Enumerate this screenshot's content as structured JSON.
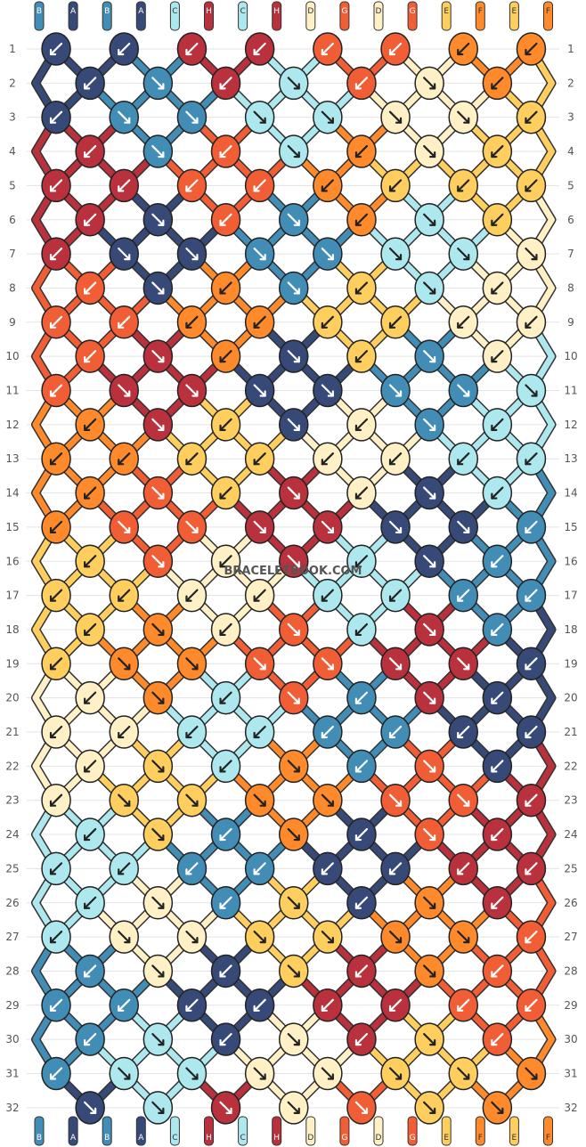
{
  "watermark": "BRACELETBOOK.COM",
  "colors": {
    "A": "#364977",
    "B": "#428db6",
    "C": "#ade8ef",
    "D": "#fff0c6",
    "E": "#fece5e",
    "F": "#fe8a2b",
    "G": "#f15e36",
    "H": "#b8313c"
  },
  "strands_top": [
    "B",
    "A",
    "B",
    "A",
    "C",
    "H",
    "C",
    "H",
    "D",
    "G",
    "D",
    "G",
    "E",
    "F",
    "E",
    "F"
  ],
  "strands_bottom": [
    "B",
    "A",
    "B",
    "A",
    "C",
    "H",
    "C",
    "H",
    "D",
    "G",
    "D",
    "G",
    "E",
    "F",
    "E",
    "F"
  ],
  "row_numbers": [
    "1",
    "2",
    "3",
    "4",
    "5",
    "6",
    "7",
    "8",
    "9",
    "10",
    "11",
    "12",
    "13",
    "14",
    "15",
    "16",
    "17",
    "18",
    "19",
    "20",
    "21",
    "22",
    "23",
    "24",
    "25",
    "26",
    "27",
    "28",
    "29",
    "30",
    "31",
    "32"
  ],
  "knots": [
    {
      "row": 1,
      "knots": [
        {
          "c": "A",
          "d": "L"
        },
        {
          "c": "A",
          "d": "L"
        },
        {
          "c": "H",
          "d": "L"
        },
        {
          "c": "H",
          "d": "L"
        },
        {
          "c": "G",
          "d": "L"
        },
        {
          "c": "G",
          "d": "L"
        },
        {
          "c": "F",
          "d": "L"
        },
        {
          "c": "F",
          "d": "L"
        }
      ]
    },
    {
      "row": 2,
      "knots": [
        {
          "c": "A",
          "d": "L"
        },
        {
          "c": "B",
          "d": "R"
        },
        {
          "c": "H",
          "d": "L"
        },
        {
          "c": "C",
          "d": "R"
        },
        {
          "c": "G",
          "d": "L"
        },
        {
          "c": "D",
          "d": "R"
        },
        {
          "c": "F",
          "d": "L"
        }
      ]
    },
    {
      "row": 3,
      "knots": [
        {
          "c": "A",
          "d": "L"
        },
        {
          "c": "B",
          "d": "R"
        },
        {
          "c": "B",
          "d": "R"
        },
        {
          "c": "C",
          "d": "R"
        },
        {
          "c": "C",
          "d": "R"
        },
        {
          "c": "D",
          "d": "R"
        },
        {
          "c": "D",
          "d": "R"
        },
        {
          "c": "E",
          "d": "L"
        }
      ]
    },
    {
      "row": 4,
      "knots": [
        {
          "c": "H",
          "d": "L"
        },
        {
          "c": "B",
          "d": "R"
        },
        {
          "c": "G",
          "d": "L"
        },
        {
          "c": "C",
          "d": "R"
        },
        {
          "c": "F",
          "d": "L"
        },
        {
          "c": "D",
          "d": "R"
        },
        {
          "c": "E",
          "d": "L"
        }
      ]
    },
    {
      "row": 5,
      "knots": [
        {
          "c": "H",
          "d": "L"
        },
        {
          "c": "H",
          "d": "L"
        },
        {
          "c": "G",
          "d": "L"
        },
        {
          "c": "G",
          "d": "L"
        },
        {
          "c": "F",
          "d": "L"
        },
        {
          "c": "E",
          "d": "L"
        },
        {
          "c": "E",
          "d": "L"
        },
        {
          "c": "E",
          "d": "L"
        }
      ]
    },
    {
      "row": 6,
      "knots": [
        {
          "c": "H",
          "d": "L"
        },
        {
          "c": "A",
          "d": "R"
        },
        {
          "c": "G",
          "d": "L"
        },
        {
          "c": "B",
          "d": "R"
        },
        {
          "c": "F",
          "d": "L"
        },
        {
          "c": "C",
          "d": "R"
        },
        {
          "c": "E",
          "d": "L"
        }
      ]
    },
    {
      "row": 7,
      "knots": [
        {
          "c": "H",
          "d": "L"
        },
        {
          "c": "A",
          "d": "R"
        },
        {
          "c": "A",
          "d": "R"
        },
        {
          "c": "B",
          "d": "R"
        },
        {
          "c": "B",
          "d": "R"
        },
        {
          "c": "C",
          "d": "R"
        },
        {
          "c": "C",
          "d": "R"
        },
        {
          "c": "D",
          "d": "R"
        }
      ]
    },
    {
      "row": 8,
      "knots": [
        {
          "c": "G",
          "d": "L"
        },
        {
          "c": "A",
          "d": "R"
        },
        {
          "c": "F",
          "d": "L"
        },
        {
          "c": "B",
          "d": "R"
        },
        {
          "c": "E",
          "d": "L"
        },
        {
          "c": "C",
          "d": "R"
        },
        {
          "c": "D",
          "d": "L"
        }
      ]
    },
    {
      "row": 9,
      "knots": [
        {
          "c": "G",
          "d": "L"
        },
        {
          "c": "G",
          "d": "L"
        },
        {
          "c": "F",
          "d": "L"
        },
        {
          "c": "F",
          "d": "L"
        },
        {
          "c": "E",
          "d": "L"
        },
        {
          "c": "E",
          "d": "L"
        },
        {
          "c": "D",
          "d": "L"
        },
        {
          "c": "D",
          "d": "L"
        }
      ]
    },
    {
      "row": 10,
      "knots": [
        {
          "c": "G",
          "d": "L"
        },
        {
          "c": "H",
          "d": "R"
        },
        {
          "c": "F",
          "d": "L"
        },
        {
          "c": "A",
          "d": "R"
        },
        {
          "c": "E",
          "d": "L"
        },
        {
          "c": "B",
          "d": "R"
        },
        {
          "c": "D",
          "d": "L"
        }
      ]
    },
    {
      "row": 11,
      "knots": [
        {
          "c": "G",
          "d": "L"
        },
        {
          "c": "H",
          "d": "R"
        },
        {
          "c": "H",
          "d": "R"
        },
        {
          "c": "A",
          "d": "R"
        },
        {
          "c": "A",
          "d": "R"
        },
        {
          "c": "B",
          "d": "R"
        },
        {
          "c": "B",
          "d": "R"
        },
        {
          "c": "C",
          "d": "R"
        }
      ]
    },
    {
      "row": 12,
      "knots": [
        {
          "c": "F",
          "d": "L"
        },
        {
          "c": "H",
          "d": "R"
        },
        {
          "c": "E",
          "d": "L"
        },
        {
          "c": "A",
          "d": "R"
        },
        {
          "c": "D",
          "d": "L"
        },
        {
          "c": "B",
          "d": "R"
        },
        {
          "c": "C",
          "d": "L"
        }
      ]
    },
    {
      "row": 13,
      "knots": [
        {
          "c": "F",
          "d": "L"
        },
        {
          "c": "F",
          "d": "L"
        },
        {
          "c": "E",
          "d": "L"
        },
        {
          "c": "E",
          "d": "L"
        },
        {
          "c": "D",
          "d": "L"
        },
        {
          "c": "D",
          "d": "L"
        },
        {
          "c": "C",
          "d": "L"
        },
        {
          "c": "C",
          "d": "L"
        }
      ]
    },
    {
      "row": 14,
      "knots": [
        {
          "c": "F",
          "d": "L"
        },
        {
          "c": "G",
          "d": "R"
        },
        {
          "c": "E",
          "d": "L"
        },
        {
          "c": "H",
          "d": "R"
        },
        {
          "c": "D",
          "d": "L"
        },
        {
          "c": "A",
          "d": "R"
        },
        {
          "c": "C",
          "d": "L"
        }
      ]
    },
    {
      "row": 15,
      "knots": [
        {
          "c": "F",
          "d": "L"
        },
        {
          "c": "G",
          "d": "R"
        },
        {
          "c": "G",
          "d": "R"
        },
        {
          "c": "H",
          "d": "R"
        },
        {
          "c": "H",
          "d": "R"
        },
        {
          "c": "A",
          "d": "R"
        },
        {
          "c": "A",
          "d": "R"
        },
        {
          "c": "B",
          "d": "L"
        }
      ]
    },
    {
      "row": 16,
      "knots": [
        {
          "c": "E",
          "d": "L"
        },
        {
          "c": "G",
          "d": "R"
        },
        {
          "c": "D",
          "d": "L"
        },
        {
          "c": "H",
          "d": "R"
        },
        {
          "c": "C",
          "d": "L"
        },
        {
          "c": "A",
          "d": "R"
        },
        {
          "c": "B",
          "d": "L"
        }
      ]
    },
    {
      "row": 17,
      "knots": [
        {
          "c": "E",
          "d": "L"
        },
        {
          "c": "E",
          "d": "L"
        },
        {
          "c": "D",
          "d": "L"
        },
        {
          "c": "D",
          "d": "L"
        },
        {
          "c": "C",
          "d": "L"
        },
        {
          "c": "C",
          "d": "L"
        },
        {
          "c": "B",
          "d": "L"
        },
        {
          "c": "B",
          "d": "L"
        }
      ]
    },
    {
      "row": 18,
      "knots": [
        {
          "c": "E",
          "d": "L"
        },
        {
          "c": "F",
          "d": "R"
        },
        {
          "c": "D",
          "d": "L"
        },
        {
          "c": "G",
          "d": "R"
        },
        {
          "c": "C",
          "d": "L"
        },
        {
          "c": "H",
          "d": "R"
        },
        {
          "c": "B",
          "d": "L"
        }
      ]
    },
    {
      "row": 19,
      "knots": [
        {
          "c": "E",
          "d": "L"
        },
        {
          "c": "F",
          "d": "R"
        },
        {
          "c": "F",
          "d": "R"
        },
        {
          "c": "G",
          "d": "R"
        },
        {
          "c": "G",
          "d": "R"
        },
        {
          "c": "H",
          "d": "R"
        },
        {
          "c": "H",
          "d": "R"
        },
        {
          "c": "A",
          "d": "L"
        }
      ]
    },
    {
      "row": 20,
      "knots": [
        {
          "c": "D",
          "d": "L"
        },
        {
          "c": "F",
          "d": "R"
        },
        {
          "c": "C",
          "d": "L"
        },
        {
          "c": "G",
          "d": "R"
        },
        {
          "c": "B",
          "d": "L"
        },
        {
          "c": "H",
          "d": "R"
        },
        {
          "c": "A",
          "d": "L"
        }
      ]
    },
    {
      "row": 21,
      "knots": [
        {
          "c": "D",
          "d": "L"
        },
        {
          "c": "D",
          "d": "L"
        },
        {
          "c": "C",
          "d": "L"
        },
        {
          "c": "C",
          "d": "L"
        },
        {
          "c": "B",
          "d": "L"
        },
        {
          "c": "B",
          "d": "L"
        },
        {
          "c": "A",
          "d": "L"
        },
        {
          "c": "A",
          "d": "L"
        }
      ]
    },
    {
      "row": 22,
      "knots": [
        {
          "c": "D",
          "d": "L"
        },
        {
          "c": "E",
          "d": "R"
        },
        {
          "c": "C",
          "d": "L"
        },
        {
          "c": "F",
          "d": "R"
        },
        {
          "c": "B",
          "d": "L"
        },
        {
          "c": "G",
          "d": "R"
        },
        {
          "c": "A",
          "d": "L"
        }
      ]
    },
    {
      "row": 23,
      "knots": [
        {
          "c": "D",
          "d": "L"
        },
        {
          "c": "E",
          "d": "R"
        },
        {
          "c": "E",
          "d": "R"
        },
        {
          "c": "F",
          "d": "R"
        },
        {
          "c": "F",
          "d": "R"
        },
        {
          "c": "G",
          "d": "R"
        },
        {
          "c": "G",
          "d": "R"
        },
        {
          "c": "H",
          "d": "L"
        }
      ]
    },
    {
      "row": 24,
      "knots": [
        {
          "c": "C",
          "d": "L"
        },
        {
          "c": "E",
          "d": "R"
        },
        {
          "c": "B",
          "d": "L"
        },
        {
          "c": "F",
          "d": "R"
        },
        {
          "c": "A",
          "d": "L"
        },
        {
          "c": "G",
          "d": "R"
        },
        {
          "c": "H",
          "d": "L"
        }
      ]
    },
    {
      "row": 25,
      "knots": [
        {
          "c": "C",
          "d": "L"
        },
        {
          "c": "C",
          "d": "L"
        },
        {
          "c": "B",
          "d": "L"
        },
        {
          "c": "B",
          "d": "L"
        },
        {
          "c": "A",
          "d": "L"
        },
        {
          "c": "A",
          "d": "L"
        },
        {
          "c": "H",
          "d": "L"
        },
        {
          "c": "H",
          "d": "L"
        }
      ]
    },
    {
      "row": 26,
      "knots": [
        {
          "c": "C",
          "d": "L"
        },
        {
          "c": "D",
          "d": "R"
        },
        {
          "c": "B",
          "d": "L"
        },
        {
          "c": "E",
          "d": "R"
        },
        {
          "c": "A",
          "d": "L"
        },
        {
          "c": "F",
          "d": "R"
        },
        {
          "c": "H",
          "d": "L"
        }
      ]
    },
    {
      "row": 27,
      "knots": [
        {
          "c": "C",
          "d": "L"
        },
        {
          "c": "D",
          "d": "R"
        },
        {
          "c": "D",
          "d": "R"
        },
        {
          "c": "E",
          "d": "R"
        },
        {
          "c": "E",
          "d": "R"
        },
        {
          "c": "F",
          "d": "R"
        },
        {
          "c": "F",
          "d": "R"
        },
        {
          "c": "G",
          "d": "L"
        }
      ]
    },
    {
      "row": 28,
      "knots": [
        {
          "c": "B",
          "d": "L"
        },
        {
          "c": "D",
          "d": "R"
        },
        {
          "c": "A",
          "d": "L"
        },
        {
          "c": "E",
          "d": "R"
        },
        {
          "c": "H",
          "d": "L"
        },
        {
          "c": "F",
          "d": "R"
        },
        {
          "c": "G",
          "d": "L"
        }
      ]
    },
    {
      "row": 29,
      "knots": [
        {
          "c": "B",
          "d": "L"
        },
        {
          "c": "B",
          "d": "L"
        },
        {
          "c": "A",
          "d": "L"
        },
        {
          "c": "A",
          "d": "L"
        },
        {
          "c": "H",
          "d": "L"
        },
        {
          "c": "H",
          "d": "L"
        },
        {
          "c": "G",
          "d": "L"
        },
        {
          "c": "G",
          "d": "L"
        }
      ]
    },
    {
      "row": 30,
      "knots": [
        {
          "c": "B",
          "d": "L"
        },
        {
          "c": "C",
          "d": "R"
        },
        {
          "c": "A",
          "d": "L"
        },
        {
          "c": "D",
          "d": "R"
        },
        {
          "c": "H",
          "d": "L"
        },
        {
          "c": "E",
          "d": "R"
        },
        {
          "c": "G",
          "d": "L"
        }
      ]
    },
    {
      "row": 31,
      "knots": [
        {
          "c": "B",
          "d": "L"
        },
        {
          "c": "C",
          "d": "R"
        },
        {
          "c": "C",
          "d": "R"
        },
        {
          "c": "D",
          "d": "R"
        },
        {
          "c": "D",
          "d": "R"
        },
        {
          "c": "E",
          "d": "R"
        },
        {
          "c": "E",
          "d": "R"
        },
        {
          "c": "F",
          "d": "R"
        }
      ]
    },
    {
      "row": 32,
      "knots": [
        {
          "c": "A",
          "d": "R"
        },
        {
          "c": "C",
          "d": "R"
        },
        {
          "c": "H",
          "d": "R"
        },
        {
          "c": "D",
          "d": "R"
        },
        {
          "c": "G",
          "d": "R"
        },
        {
          "c": "E",
          "d": "R"
        },
        {
          "c": "F",
          "d": "R"
        }
      ]
    }
  ]
}
